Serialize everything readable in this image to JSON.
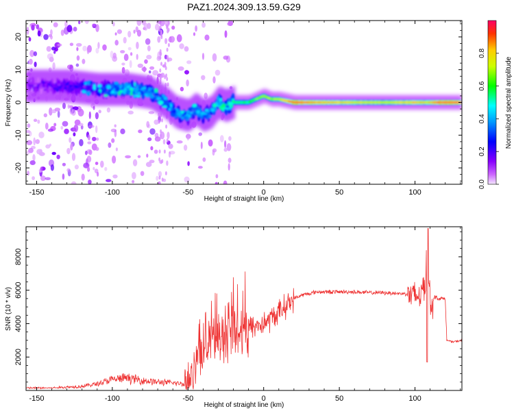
{
  "title": "PAZ1.2024.309.13.59.G29",
  "chart_data": [
    {
      "type": "heatmap",
      "xlabel": "Height of straight line (km)",
      "ylabel": "Frequency (Hz)",
      "xlim": [
        -157,
        131
      ],
      "ylim": [
        -25,
        25
      ],
      "xticks": [
        -150,
        -100,
        -50,
        0,
        50,
        100
      ],
      "yticks": [
        -20,
        -10,
        0,
        10,
        20
      ],
      "colorbar": {
        "label": "Normalized spectral amplitude",
        "range": [
          0.0,
          1.0
        ],
        "ticks": [
          "0.0",
          "0.2",
          "0.4",
          "0.6",
          "0.8"
        ],
        "colormap": "purple-blue-cyan-green-yellow-red"
      },
      "ridge": {
        "x": [
          -150,
          -130,
          -110,
          -90,
          -75,
          -65,
          -58,
          -50,
          -45,
          -40,
          -35,
          -30,
          -25,
          -20,
          -10,
          -5,
          0,
          5,
          10,
          20,
          40,
          60,
          80,
          100,
          108,
          115,
          131
        ],
        "y": [
          5,
          5,
          4,
          4,
          3,
          0,
          -3,
          -4,
          -2,
          -4,
          -3,
          0,
          -1,
          0,
          0,
          1,
          2,
          1,
          1,
          0,
          0,
          0,
          0,
          0,
          0,
          0,
          0
        ],
        "amplitude": [
          0.15,
          0.2,
          0.25,
          0.45,
          0.4,
          0.3,
          0.45,
          0.4,
          0.4,
          0.4,
          0.35,
          0.45,
          0.5,
          0.55,
          0.6,
          0.65,
          0.7,
          0.7,
          0.75,
          0.95,
          0.85,
          0.8,
          0.75,
          0.85,
          0.8,
          0.95,
          0.95
        ]
      }
    },
    {
      "type": "line",
      "xlabel": "Height of straight line (km)",
      "ylabel": "SNR (10 * v/v)",
      "xlim": [
        -157,
        131
      ],
      "ylim": [
        0,
        9800
      ],
      "xticks": [
        -150,
        -100,
        -50,
        0,
        50,
        100
      ],
      "yticks": [
        2000,
        4000,
        6000,
        8000
      ],
      "color": "#ee3030",
      "series": [
        {
          "x": [
            -157,
            -140,
            -120,
            -110,
            -100,
            -90,
            -80,
            -70,
            -60,
            -52,
            -48,
            -44,
            -40,
            -36,
            -32,
            -28,
            -24,
            -20,
            -16,
            -12,
            -8,
            -4,
            0,
            5,
            10,
            15,
            20,
            25,
            30,
            35,
            40,
            50,
            60,
            70,
            80,
            90,
            95,
            100,
            104,
            107,
            108,
            110,
            113,
            116,
            120,
            121,
            125,
            131
          ],
          "y": [
            150,
            150,
            250,
            400,
            650,
            750,
            600,
            500,
            450,
            400,
            900,
            1800,
            2700,
            3000,
            3100,
            3300,
            3400,
            3600,
            3700,
            3800,
            3800,
            3900,
            4000,
            4300,
            4700,
            5100,
            5500,
            5700,
            5800,
            5900,
            5900,
            5900,
            5900,
            5850,
            5850,
            5800,
            5800,
            5600,
            5800,
            6500,
            9300,
            5000,
            5600,
            5500,
            5500,
            3000,
            2900,
            3000
          ]
        }
      ]
    }
  ]
}
